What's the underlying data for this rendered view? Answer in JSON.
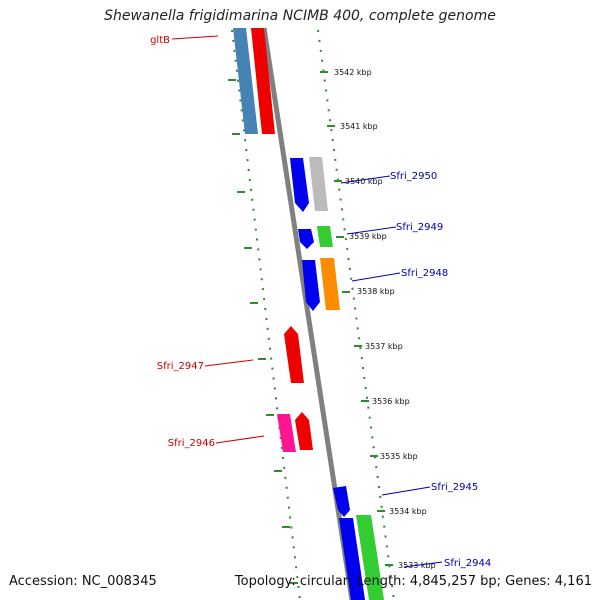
{
  "title": "Shewanella frigidimarina NCIMB 400, complete genome",
  "accession": "Accession: NC_008345",
  "topology": "Topology: circular; Length: 4,845,257 bp; Genes: 4,161",
  "colors": {
    "left_gene_label": "#cc0000",
    "right_gene_label": "#0000aa",
    "axis": "#808080",
    "ruler_ticks": "#2e8b2e"
  },
  "ruler_labels": [
    "3542 kbp",
    "3541 kbp",
    "3540 kbp",
    "3539 kbp",
    "3538 kbp",
    "3537 kbp",
    "3536 kbp",
    "3535 kbp",
    "3534 kbp",
    "3533 kbp"
  ],
  "gene_labels": [
    "gltB",
    "Sfri_2950",
    "Sfri_2949",
    "Sfri_2948",
    "Sfri_2947",
    "Sfri_2946",
    "Sfri_2945",
    "Sfri_2944"
  ]
}
